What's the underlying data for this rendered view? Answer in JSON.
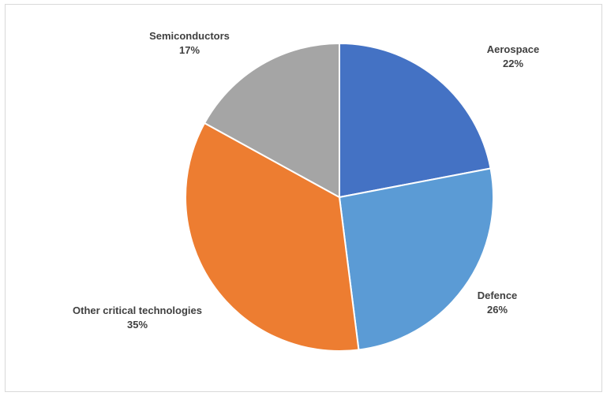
{
  "chart_data": {
    "type": "pie",
    "title": "",
    "slices": [
      {
        "name": "Aerospace",
        "label": "22%",
        "value": 22,
        "color": "#4472c4"
      },
      {
        "name": "Defence",
        "label": "26%",
        "value": 26,
        "color": "#5b9bd5"
      },
      {
        "name": "Other critical technologies",
        "label": "35%",
        "value": 35,
        "color": "#ed7d31"
      },
      {
        "name": "Semiconductors",
        "label": "17%",
        "value": 17,
        "color": "#a5a5a5"
      }
    ],
    "start_angle_deg": 0,
    "direction": "clockwise",
    "legend": "none",
    "data_labels": "outside"
  }
}
